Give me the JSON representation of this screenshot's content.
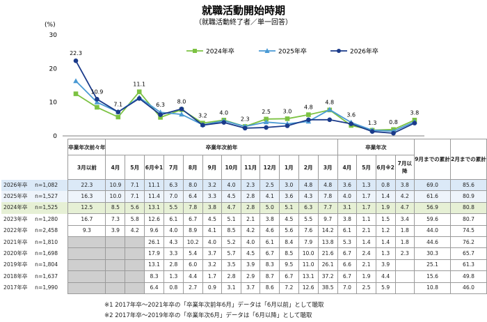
{
  "chart_data": {
    "type": "line",
    "title": "就職活動開始時期",
    "subtitle": "（就職活動終了者／単一回答）",
    "yunit": "(%)",
    "ylim": [
      0,
      30
    ],
    "yticks": [
      "0",
      "10",
      "20",
      "30"
    ],
    "x": [
      "3月以前",
      "4月",
      "5月",
      "6月※1",
      "7月",
      "8月",
      "9月",
      "10月",
      "11月",
      "12月",
      "1月",
      "2月",
      "3月",
      "4月",
      "5月",
      "6月※2",
      "7月以降"
    ],
    "series": [
      {
        "name": "2024年卒",
        "color": "#7cc242",
        "marker": "square",
        "values": [
          12.5,
          8.5,
          5.6,
          13.1,
          5.5,
          7.8,
          3.8,
          4.7,
          2.8,
          5.0,
          5.1,
          6.3,
          7.7,
          3.1,
          1.7,
          1.9,
          4.7
        ]
      },
      {
        "name": "2025年卒",
        "color": "#4a9ad4",
        "marker": "triangle",
        "values": [
          16.3,
          10.0,
          7.1,
          11.4,
          7.0,
          6.4,
          3.3,
          4.5,
          2.8,
          4.1,
          3.6,
          4.3,
          7.8,
          4.0,
          1.7,
          1.4,
          4.2
        ]
      },
      {
        "name": "2026年卒",
        "color": "#1a3a8a",
        "marker": "circle",
        "values": [
          22.3,
          10.9,
          7.1,
          11.1,
          6.3,
          8.0,
          3.2,
          4.0,
          2.3,
          2.5,
          3.0,
          4.8,
          4.8,
          3.6,
          1.3,
          0.8,
          3.8
        ]
      }
    ],
    "data_labels": [
      "22.3",
      "10.9",
      "7.1",
      "11.1",
      "6.3",
      "8.0",
      "3.2",
      "4.0",
      "2.3",
      "2.5",
      "3.0",
      "4.8",
      "4.8",
      "3.6",
      "1.3",
      "0.8",
      "3.8"
    ]
  },
  "table": {
    "group_pre": "卒業年次前々年",
    "group_prev": "卒業年次前年",
    "group_grad": "卒業年次",
    "cols": [
      "3月以前",
      "4月",
      "5月",
      "6月※1",
      "7月",
      "8月",
      "9月",
      "10月",
      "11月",
      "12月",
      "1月",
      "2月",
      "3月",
      "4月",
      "5月",
      "6月※2",
      "7月以降"
    ],
    "cum_sep": "9月までの累計",
    "cum_feb": "2月までの累計",
    "rows": [
      {
        "year": "2026年卒",
        "n": "n=1,082",
        "style": "r-blue",
        "vals": [
          "22.3",
          "10.9",
          "7.1",
          "11.1",
          "6.3",
          "8.0",
          "3.2",
          "4.0",
          "2.3",
          "2.5",
          "3.0",
          "4.8",
          "4.8",
          "3.6",
          "1.3",
          "0.8",
          "3.8",
          "69.0",
          "85.6"
        ]
      },
      {
        "year": "2025年卒",
        "n": "n=1,527",
        "style": "r-light",
        "vals": [
          "16.3",
          "10.0",
          "7.1",
          "11.4",
          "7.0",
          "6.4",
          "3.3",
          "4.5",
          "2.8",
          "4.1",
          "3.6",
          "4.3",
          "7.8",
          "4.0",
          "1.7",
          "1.4",
          "4.2",
          "61.6",
          "80.9"
        ]
      },
      {
        "year": "2024年卒",
        "n": "n=1,525",
        "style": "r-green",
        "vals": [
          "12.5",
          "8.5",
          "5.6",
          "13.1",
          "5.5",
          "7.8",
          "3.8",
          "4.7",
          "2.8",
          "5.0",
          "5.1",
          "6.3",
          "7.7",
          "3.1",
          "1.7",
          "1.9",
          "4.7",
          "56.9",
          "80.8"
        ]
      },
      {
        "year": "2023年卒",
        "n": "n=1,280",
        "style": "",
        "vals": [
          "16.7",
          "7.3",
          "5.8",
          "12.6",
          "6.1",
          "6.7",
          "4.5",
          "5.1",
          "2.1",
          "3.8",
          "4.5",
          "5.5",
          "9.7",
          "3.8",
          "1.1",
          "1.5",
          "3.4",
          "59.6",
          "80.7"
        ]
      },
      {
        "year": "2022年卒",
        "n": "n=2,458",
        "style": "",
        "vals": [
          "9.3",
          "3.9",
          "4.2",
          "9.6",
          "4.0",
          "8.9",
          "4.1",
          "8.5",
          "4.2",
          "4.6",
          "5.6",
          "7.6",
          "14.2",
          "6.1",
          "2.1",
          "1.2",
          "1.8",
          "44.0",
          "74.5"
        ]
      },
      {
        "year": "2021年卒",
        "n": "n=1,810",
        "style": "",
        "vals": [
          "",
          "",
          "",
          "26.1",
          "4.3",
          "10.2",
          "4.0",
          "5.2",
          "4.0",
          "6.1",
          "8.4",
          "7.9",
          "13.8",
          "5.3",
          "1.4",
          "1.4",
          "1.8",
          "44.6",
          "76.2"
        ]
      },
      {
        "year": "2020年卒",
        "n": "n=1,698",
        "style": "",
        "vals": [
          "",
          "",
          "",
          "17.9",
          "3.3",
          "5.4",
          "3.7",
          "5.7",
          "4.5",
          "6.7",
          "8.5",
          "10.0",
          "21.6",
          "6.7",
          "2.4",
          "1.3",
          "2.3",
          "30.3",
          "65.7"
        ]
      },
      {
        "year": "2019年卒",
        "n": "n=1,804",
        "style": "",
        "vals": [
          "",
          "",
          "",
          "13.1",
          "2.8",
          "6.0",
          "3.2",
          "3.5",
          "3.9",
          "8.3",
          "9.5",
          "11.0",
          "26.1",
          "6.6",
          "2.1",
          "3.9",
          "",
          "25.1",
          "61.3"
        ]
      },
      {
        "year": "2018年卒",
        "n": "n=1,637",
        "style": "",
        "vals": [
          "",
          "",
          "",
          "8.3",
          "1.3",
          "4.4",
          "1.7",
          "2.8",
          "2.9",
          "8.7",
          "6.7",
          "13.1",
          "37.2",
          "6.7",
          "1.9",
          "4.4",
          "",
          "15.6",
          "49.8"
        ]
      },
      {
        "year": "2017年卒",
        "n": "n=1,990",
        "style": "",
        "vals": [
          "",
          "",
          "",
          "6.4",
          "0.8",
          "2.7",
          "0.9",
          "3.1",
          "3.7",
          "8.6",
          "7.2",
          "12.6",
          "38.5",
          "7.0",
          "2.5",
          "5.9",
          "",
          "10.8",
          "46.0"
        ]
      }
    ],
    "note1": "※1 2017年卒～2021年卒の「卒業年次前年6月」データは「6月以前」として聴取",
    "note2": "※2 2017年卒～2019年卒の「卒業年次6月」データは「6月以降」として聴取"
  }
}
